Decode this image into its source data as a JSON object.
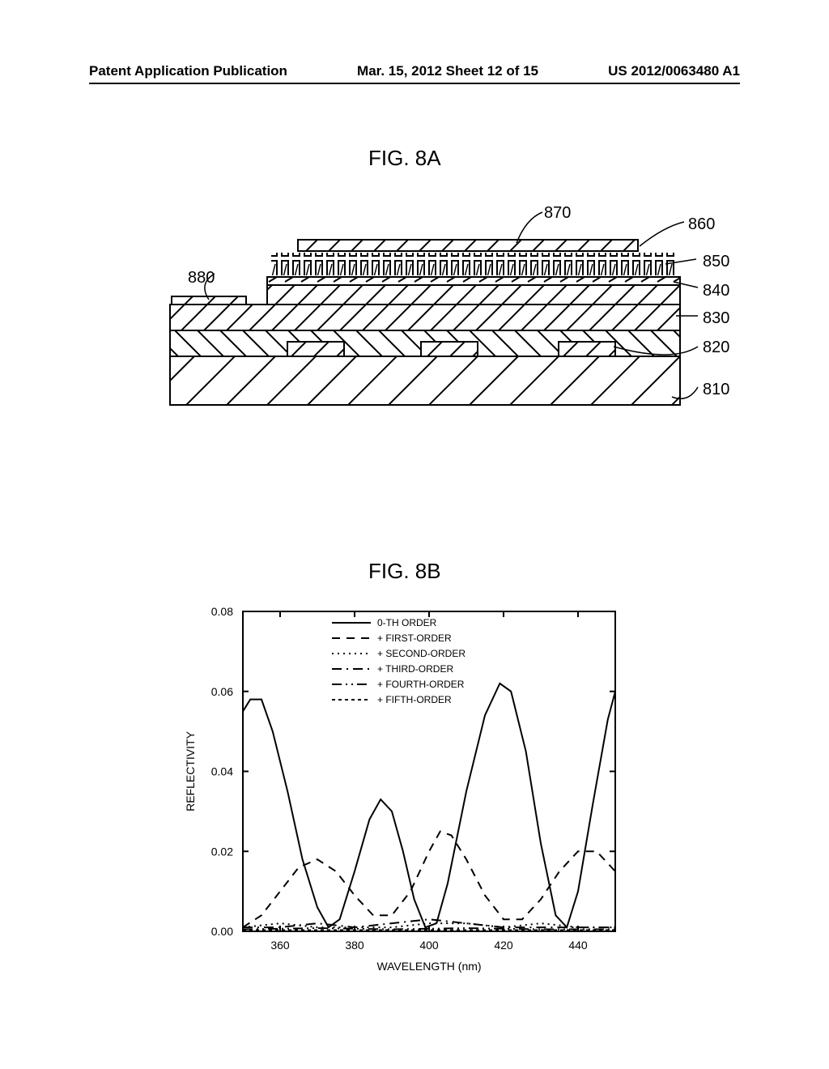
{
  "header": {
    "left": "Patent Application Publication",
    "center": "Mar. 15, 2012  Sheet 12 of 15",
    "right": "US 2012/0063480 A1"
  },
  "fig8a": {
    "label": "FIG. 8A",
    "refs": {
      "r810": "810",
      "r820": "820",
      "r830": "830",
      "r840": "840",
      "r850": "850",
      "r860": "860",
      "r870": "870",
      "r880": "880"
    }
  },
  "fig8b": {
    "label": "FIG. 8B",
    "type": "line",
    "xlabel": "WAVELENGTH (nm)",
    "ylabel": "REFLECTIVITY",
    "xlim": [
      350,
      450
    ],
    "ylim": [
      0,
      0.08
    ],
    "xticks": [
      360,
      380,
      400,
      420,
      440
    ],
    "yticks": [
      0.0,
      0.02,
      0.04,
      0.06,
      0.08
    ],
    "ytick_labels": [
      "0.00",
      "0.02",
      "0.04",
      "0.06",
      "0.08"
    ],
    "tick_fontsize": 14,
    "label_fontsize": 14,
    "legend_fontsize": 12,
    "line_color": "#000000",
    "background_color": "#ffffff",
    "axis_linewidth": 2,
    "series_linewidth": 2,
    "legend": [
      {
        "label": "0-TH ORDER",
        "dash": "solid"
      },
      {
        "label": "+ FIRST-ORDER",
        "dash": "dash"
      },
      {
        "label": "+ SECOND-ORDER",
        "dash": "dot"
      },
      {
        "label": "+ THIRD-ORDER",
        "dash": "dashdot"
      },
      {
        "label": "+ FOURTH-ORDER",
        "dash": "dashdotdot"
      },
      {
        "label": "+ FIFTH-ORDER",
        "dash": "finedash"
      }
    ],
    "series": [
      {
        "name": "0-TH ORDER",
        "dash": "solid",
        "points": [
          [
            350,
            0.055
          ],
          [
            352,
            0.058
          ],
          [
            355,
            0.058
          ],
          [
            358,
            0.05
          ],
          [
            362,
            0.035
          ],
          [
            366,
            0.018
          ],
          [
            370,
            0.006
          ],
          [
            373,
            0.001
          ],
          [
            376,
            0.003
          ],
          [
            380,
            0.015
          ],
          [
            384,
            0.028
          ],
          [
            387,
            0.033
          ],
          [
            390,
            0.03
          ],
          [
            393,
            0.02
          ],
          [
            396,
            0.008
          ],
          [
            399,
            0.001
          ],
          [
            402,
            0.002
          ],
          [
            405,
            0.012
          ],
          [
            410,
            0.035
          ],
          [
            415,
            0.054
          ],
          [
            419,
            0.062
          ],
          [
            422,
            0.06
          ],
          [
            426,
            0.045
          ],
          [
            430,
            0.022
          ],
          [
            434,
            0.004
          ],
          [
            437,
            0.001
          ],
          [
            440,
            0.01
          ],
          [
            444,
            0.032
          ],
          [
            448,
            0.053
          ],
          [
            450,
            0.06
          ]
        ]
      },
      {
        "name": "+ FIRST-ORDER",
        "dash": "dash",
        "points": [
          [
            350,
            0.001
          ],
          [
            355,
            0.004
          ],
          [
            360,
            0.01
          ],
          [
            365,
            0.016
          ],
          [
            370,
            0.018
          ],
          [
            375,
            0.015
          ],
          [
            380,
            0.009
          ],
          [
            385,
            0.004
          ],
          [
            390,
            0.004
          ],
          [
            395,
            0.01
          ],
          [
            400,
            0.02
          ],
          [
            403,
            0.025
          ],
          [
            406,
            0.024
          ],
          [
            410,
            0.018
          ],
          [
            415,
            0.009
          ],
          [
            420,
            0.003
          ],
          [
            425,
            0.003
          ],
          [
            430,
            0.008
          ],
          [
            435,
            0.015
          ],
          [
            440,
            0.02
          ],
          [
            445,
            0.02
          ],
          [
            450,
            0.015
          ]
        ]
      },
      {
        "name": "+ SECOND-ORDER",
        "dash": "dot",
        "points": [
          [
            350,
            0.001
          ],
          [
            360,
            0.002
          ],
          [
            370,
            0.001
          ],
          [
            380,
            0.001
          ],
          [
            390,
            0.001
          ],
          [
            400,
            0.002
          ],
          [
            410,
            0.002
          ],
          [
            420,
            0.001
          ],
          [
            430,
            0.002
          ],
          [
            440,
            0.001
          ],
          [
            450,
            0.001
          ]
        ]
      },
      {
        "name": "+ THIRD-ORDER",
        "dash": "dashdot",
        "points": [
          [
            350,
            0.001
          ],
          [
            360,
            0.001
          ],
          [
            370,
            0.002
          ],
          [
            380,
            0.001
          ],
          [
            390,
            0.002
          ],
          [
            400,
            0.003
          ],
          [
            410,
            0.002
          ],
          [
            420,
            0.001
          ],
          [
            430,
            0.001
          ],
          [
            440,
            0.001
          ],
          [
            450,
            0.001
          ]
        ]
      },
      {
        "name": "+ FOURTH-ORDER",
        "dash": "dashdotdot",
        "points": [
          [
            350,
            0.0005
          ],
          [
            370,
            0.0008
          ],
          [
            390,
            0.0005
          ],
          [
            410,
            0.0008
          ],
          [
            430,
            0.0005
          ],
          [
            450,
            0.0005
          ]
        ]
      },
      {
        "name": "+ FIFTH-ORDER",
        "dash": "finedash",
        "points": [
          [
            350,
            0.0003
          ],
          [
            370,
            0.0003
          ],
          [
            390,
            0.0003
          ],
          [
            410,
            0.0003
          ],
          [
            430,
            0.0003
          ],
          [
            450,
            0.0003
          ]
        ]
      }
    ]
  }
}
